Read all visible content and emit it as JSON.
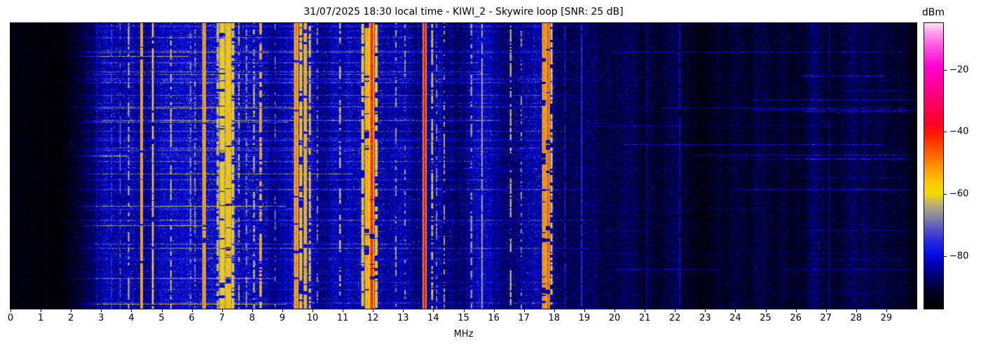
{
  "title": "31/07/2025 18:30 local time - KIWI_2 - Skywire loop [SNR: 25 dB]",
  "header": {
    "date": "31/07/2025",
    "time": "18:30 local time",
    "station": "KIWI_2",
    "antenna": "Skywire loop",
    "snr": "25 dB"
  },
  "chart_data": {
    "type": "heatmap",
    "subtype": "hf-spectrogram-waterfall",
    "title": "31/07/2025 18:30 local time - KIWI_2 - Skywire loop [SNR: 25 dB]",
    "xlabel": "MHz",
    "ylabel": "",
    "x_range_mhz": [
      0,
      30
    ],
    "x_ticks": [
      0,
      1,
      2,
      3,
      4,
      5,
      6,
      7,
      8,
      9,
      10,
      11,
      12,
      13,
      14,
      15,
      16,
      17,
      18,
      19,
      20,
      21,
      22,
      23,
      24,
      25,
      26,
      27,
      28,
      29
    ],
    "y_axis": "time (no ticks shown)",
    "grid": false,
    "colorbar": {
      "label": "dBm",
      "ticks": [
        -20,
        -40,
        -60,
        -80
      ],
      "range_dbm": [
        -97,
        -5
      ],
      "stops": [
        {
          "v": -97,
          "c": "#000000"
        },
        {
          "v": -92,
          "c": "#000024"
        },
        {
          "v": -87,
          "c": "#000068"
        },
        {
          "v": -83,
          "c": "#0000b0"
        },
        {
          "v": -79,
          "c": "#0512ea"
        },
        {
          "v": -75,
          "c": "#2a2ae0"
        },
        {
          "v": -71,
          "c": "#5b58c2"
        },
        {
          "v": -67,
          "c": "#8e8aa2"
        },
        {
          "v": -63,
          "c": "#c4b268"
        },
        {
          "v": -60,
          "c": "#f2dc00"
        },
        {
          "v": -56,
          "c": "#ffc400"
        },
        {
          "v": -51,
          "c": "#ff9000"
        },
        {
          "v": -46,
          "c": "#ff5600"
        },
        {
          "v": -41,
          "c": "#ff1c00"
        },
        {
          "v": -37,
          "c": "#ff0026"
        },
        {
          "v": -31,
          "c": "#fb0062"
        },
        {
          "v": -25,
          "c": "#ff009c"
        },
        {
          "v": -19,
          "c": "#ff00d0"
        },
        {
          "v": -13,
          "c": "#ff4cdf"
        },
        {
          "v": -8,
          "c": "#ff9cec"
        },
        {
          "v": -5,
          "c": "#ffe2fb"
        }
      ]
    },
    "noise_floor_profile_mhz_dbm": [
      [
        0,
        -95.5
      ],
      [
        2.0,
        -94.5
      ],
      [
        2.6,
        -88
      ],
      [
        3.1,
        -83
      ],
      [
        3.7,
        -82.5
      ],
      [
        4.2,
        -84
      ],
      [
        5.6,
        -83
      ],
      [
        6.1,
        -81
      ],
      [
        8.4,
        -81.5
      ],
      [
        8.7,
        -84
      ],
      [
        9.3,
        -82
      ],
      [
        10.0,
        -84
      ],
      [
        11.5,
        -82.5
      ],
      [
        12.2,
        -85
      ],
      [
        13.3,
        -84
      ],
      [
        14.3,
        -85
      ],
      [
        16.3,
        -85.5
      ],
      [
        18.2,
        -87
      ],
      [
        19.2,
        -89.5
      ],
      [
        21,
        -90.5
      ],
      [
        30,
        -91
      ]
    ],
    "signals_columns": [
      "mhz",
      "halfwidth_mhz",
      "peak_dbm",
      "duty"
    ],
    "signals": [
      [
        2.85,
        0.02,
        -80,
        0.9
      ],
      [
        3.33,
        0.02,
        -72,
        0.5
      ],
      [
        3.62,
        0.02,
        -68,
        0.35
      ],
      [
        3.9,
        0.025,
        -62,
        0.5
      ],
      [
        4.33,
        0.03,
        -50,
        0.95
      ],
      [
        4.7,
        0.025,
        -55,
        0.85
      ],
      [
        5.3,
        0.025,
        -60,
        0.55
      ],
      [
        5.95,
        0.02,
        -64,
        0.4
      ],
      [
        6.1,
        0.02,
        -63,
        0.4
      ],
      [
        6.4,
        0.04,
        -49,
        0.95
      ],
      [
        6.85,
        0.04,
        -61,
        0.6
      ],
      [
        7.0,
        0.1,
        -58,
        0.85
      ],
      [
        7.2,
        0.09,
        -55,
        0.9
      ],
      [
        7.35,
        0.05,
        -59,
        0.7
      ],
      [
        7.55,
        0.025,
        -62,
        0.5
      ],
      [
        7.8,
        0.025,
        -64,
        0.5
      ],
      [
        8.05,
        0.03,
        -62,
        0.55
      ],
      [
        8.27,
        0.03,
        -52,
        0.5
      ],
      [
        8.75,
        0.02,
        -66,
        0.3
      ],
      [
        9.45,
        0.05,
        -48,
        0.95
      ],
      [
        9.6,
        0.04,
        -55,
        0.85
      ],
      [
        9.75,
        0.04,
        -52,
        0.9
      ],
      [
        9.9,
        0.03,
        -58,
        0.7
      ],
      [
        10.15,
        0.02,
        -64,
        0.35
      ],
      [
        10.9,
        0.03,
        -61,
        0.5
      ],
      [
        11.65,
        0.04,
        -57,
        0.8
      ],
      [
        11.8,
        0.06,
        -52,
        0.9
      ],
      [
        11.95,
        0.05,
        -40,
        0.97
      ],
      [
        12.1,
        0.04,
        -56,
        0.8
      ],
      [
        12.75,
        0.02,
        -62,
        0.4
      ],
      [
        13.05,
        0.02,
        -63,
        0.35
      ],
      [
        13.7,
        0.035,
        -36,
        1.0
      ],
      [
        13.95,
        0.03,
        -60,
        0.6
      ],
      [
        14.1,
        0.02,
        -64,
        0.4
      ],
      [
        14.35,
        0.02,
        -62,
        0.4
      ],
      [
        15.25,
        0.03,
        -64,
        0.45
      ],
      [
        15.6,
        0.025,
        -63,
        0.9
      ],
      [
        16.55,
        0.025,
        -60,
        0.5
      ],
      [
        16.9,
        0.02,
        -63,
        0.3
      ],
      [
        17.65,
        0.04,
        -48,
        0.9
      ],
      [
        17.78,
        0.04,
        -44,
        0.95
      ],
      [
        17.9,
        0.03,
        -56,
        0.7
      ],
      [
        18.35,
        0.02,
        -76,
        0.8
      ],
      [
        18.9,
        0.015,
        -73,
        0.9
      ],
      [
        21.05,
        0.015,
        -82,
        0.9
      ],
      [
        22.15,
        0.015,
        -78,
        0.85
      ],
      [
        24.9,
        0.015,
        -84,
        0.8
      ],
      [
        27.1,
        0.015,
        -82,
        0.9
      ]
    ],
    "speckle_regions": [
      [
        2.8,
        4.1,
        0.03,
        11
      ],
      [
        4.1,
        5.6,
        0.025,
        12
      ],
      [
        5.8,
        6.8,
        0.05,
        14
      ],
      [
        6.8,
        7.5,
        0.07,
        15
      ],
      [
        7.5,
        8.5,
        0.04,
        13
      ],
      [
        9.3,
        10.0,
        0.05,
        13
      ],
      [
        10.0,
        11.5,
        0.02,
        11
      ],
      [
        11.5,
        12.3,
        0.05,
        13
      ],
      [
        12.3,
        13.4,
        0.02,
        10
      ],
      [
        13.4,
        14.3,
        0.03,
        12
      ],
      [
        14.3,
        15.1,
        0.015,
        10
      ],
      [
        15.1,
        16.0,
        0.02,
        11
      ],
      [
        16.4,
        18.1,
        0.03,
        12
      ],
      [
        18.1,
        19.2,
        0.01,
        8
      ]
    ],
    "streaks": {
      "main": {
        "count": 46,
        "x_mhz": [
          0.8,
          19.3
        ],
        "boost_db": [
          3,
          13
        ]
      },
      "strong": {
        "count": 9,
        "x_mhz": [
          0.8,
          11.5
        ],
        "boost_db": [
          15,
          24
        ]
      },
      "high_band": {
        "count": 26,
        "x_mhz": [
          19,
          30
        ],
        "boost_db": [
          3,
          11
        ]
      },
      "full_width": {
        "count": 10,
        "x_mhz": [
          0,
          30
        ],
        "boost_db": [
          2,
          6
        ]
      }
    },
    "render_params": {
      "seed": 1337,
      "noise_sigma": 5.5,
      "sparse_speckle": [
        0.015,
        9
      ]
    }
  }
}
